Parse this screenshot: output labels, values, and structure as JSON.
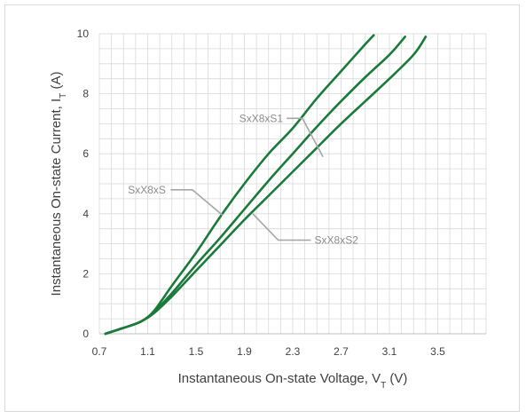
{
  "chart_data": {
    "type": "line",
    "title": "",
    "xlabel": {
      "main": "Instantaneous On-state Voltage, V",
      "sub": "T",
      "suffix": " (V)"
    },
    "ylabel": {
      "main": "Instantaneous On-state Current, I",
      "sub": "T",
      "suffix": " (A)"
    },
    "xlim": [
      0.7,
      3.9
    ],
    "ylim": [
      0,
      10
    ],
    "xticks": [
      "0.7",
      "1.1",
      "1.5",
      "1.9",
      "2.3",
      "2.7",
      "3.1",
      "3.5"
    ],
    "yticks": [
      "0",
      "2",
      "4",
      "6",
      "8",
      "10"
    ],
    "grid": true,
    "minor_grid_x_step": 0.1,
    "minor_grid_y_step": 0.5,
    "series": [
      {
        "name": "SxX8xS1",
        "color": "#1a7a3a",
        "x": [
          0.75,
          0.85,
          0.95,
          1.05,
          1.15,
          1.3,
          1.5,
          1.7,
          1.9,
          2.1,
          2.3,
          2.5,
          2.7,
          2.9,
          2.97
        ],
        "y": [
          0.0,
          0.13,
          0.26,
          0.42,
          0.75,
          1.6,
          2.7,
          3.9,
          5.0,
          6.0,
          6.85,
          7.85,
          8.75,
          9.65,
          9.95
        ]
      },
      {
        "name": "SxX8xS",
        "color": "#1a7a3a",
        "x": [
          0.75,
          0.85,
          0.95,
          1.05,
          1.15,
          1.3,
          1.5,
          1.7,
          1.9,
          2.1,
          2.3,
          2.5,
          2.7,
          2.9,
          3.1,
          3.23
        ],
        "y": [
          0.0,
          0.13,
          0.26,
          0.42,
          0.72,
          1.35,
          2.3,
          3.2,
          4.15,
          5.1,
          6.0,
          6.9,
          7.75,
          8.55,
          9.3,
          9.9
        ]
      },
      {
        "name": "SxX8xS2",
        "color": "#1a7a3a",
        "x": [
          0.75,
          0.85,
          0.95,
          1.05,
          1.15,
          1.3,
          1.5,
          1.7,
          1.9,
          2.1,
          2.3,
          2.5,
          2.7,
          2.9,
          3.1,
          3.3,
          3.4
        ],
        "y": [
          0.0,
          0.13,
          0.26,
          0.42,
          0.68,
          1.25,
          2.1,
          2.95,
          3.8,
          4.6,
          5.4,
          6.2,
          7.0,
          7.75,
          8.5,
          9.3,
          9.9
        ]
      }
    ],
    "annotations": [
      {
        "label": "SxX8xS1",
        "label_anchor": [
          2.22,
          7.18
        ],
        "path": [
          [
            2.25,
            7.18
          ],
          [
            2.38,
            7.18
          ],
          [
            2.55,
            5.9
          ]
        ]
      },
      {
        "label": "SxX8xS",
        "label_anchor": [
          1.25,
          4.8
        ],
        "path": [
          [
            1.29,
            4.8
          ],
          [
            1.47,
            4.8
          ],
          [
            1.72,
            3.95
          ]
        ]
      },
      {
        "label": "SxX8xS2",
        "label_anchor": [
          2.48,
          3.12
        ],
        "path": [
          [
            2.45,
            3.12
          ],
          [
            2.18,
            3.12
          ],
          [
            1.97,
            4.0
          ]
        ]
      }
    ]
  }
}
